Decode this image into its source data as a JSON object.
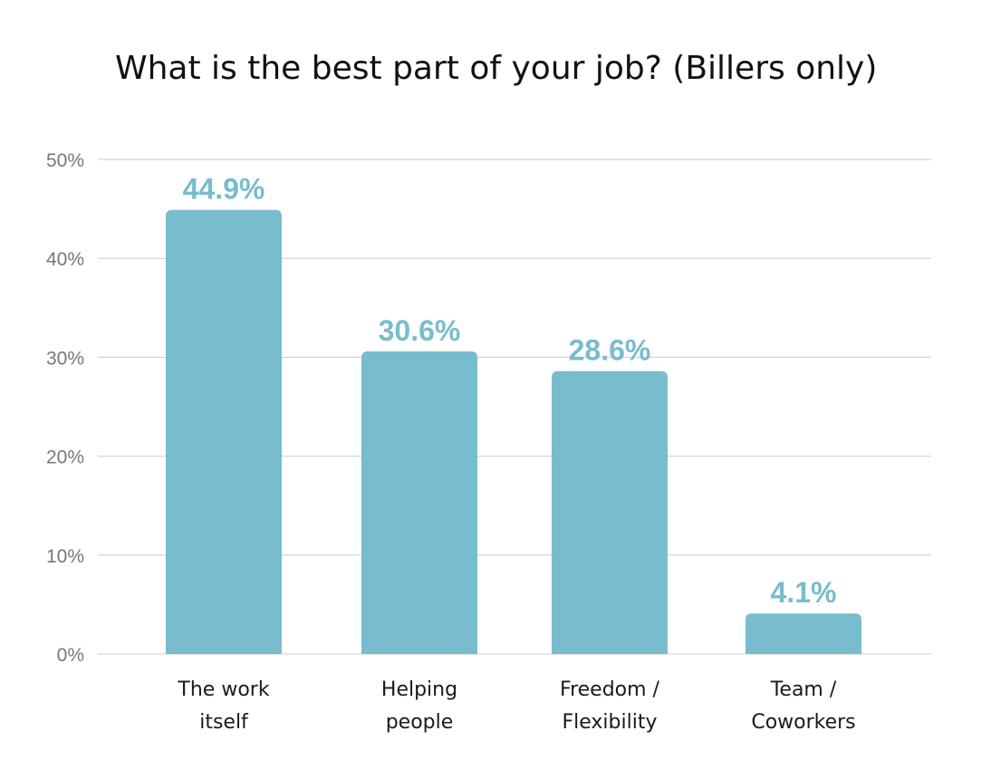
{
  "chart_data": {
    "type": "bar",
    "title": "What is the best part of your job? (Billers only)",
    "categories": [
      [
        "The work",
        "itself"
      ],
      [
        "Helping",
        "people"
      ],
      [
        "Freedom /",
        "Flexibility"
      ],
      [
        "Team /",
        "Coworkers"
      ]
    ],
    "values": [
      44.9,
      30.6,
      28.6,
      4.1
    ],
    "data_labels": [
      "44.9%",
      "30.6%",
      "28.6%",
      "4.1%"
    ],
    "yticks": [
      0,
      10,
      20,
      30,
      40,
      50
    ],
    "ytick_labels": [
      "0%",
      "10%",
      "20%",
      "30%",
      "40%",
      "50%"
    ],
    "ylim": [
      0,
      50
    ],
    "xlabel": "",
    "ylabel": "",
    "grid": true,
    "colors": {
      "bar": "#78bccd",
      "label": "#78bccd"
    }
  }
}
